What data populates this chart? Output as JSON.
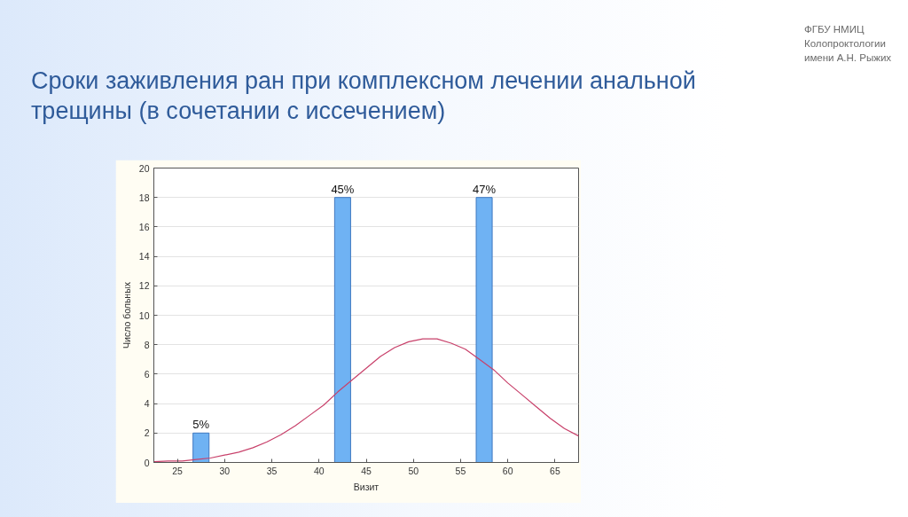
{
  "chart_data": {
    "type": "bar",
    "title": "Сроки заживления ран при комплексном лечении анальной трещины (в сочетании с иссечением)",
    "xlabel": "Визит",
    "ylabel": "Число больных",
    "annotations": [
      "ФГБУ НМИЦ\nКолопроктологии\nимени А.Н. Рыжих",
      {
        "text": "5%",
        "x": 27.5,
        "y": 2
      },
      {
        "text": "45%",
        "x": 42.5,
        "y": 18
      },
      {
        "text": "47%",
        "x": 57.5,
        "y": 18
      }
    ],
    "xlim": [
      22.5,
      67.5
    ],
    "xticks": [
      25,
      30,
      35,
      40,
      45,
      50,
      55,
      60,
      65
    ],
    "ylim": [
      0,
      20
    ],
    "yticks": [
      0,
      2,
      4,
      6,
      8,
      10,
      12,
      14,
      16,
      18,
      20
    ],
    "grid": "y",
    "series": [
      {
        "x": [
          27.5,
          42.5,
          57.5
        ],
        "values": [
          2,
          18,
          18
        ],
        "color": "#6fb2f3"
      },
      {
        "type": "line",
        "color": "#c8406a",
        "x": [
          22.5,
          24,
          25.5,
          27,
          28.5,
          30,
          31.5,
          33,
          34.5,
          36,
          37.5,
          39,
          40.5,
          42,
          43.5,
          45,
          46.5,
          48,
          49.5,
          51,
          52.5,
          54,
          55.5,
          57,
          58.5,
          60,
          61.5,
          63,
          64.5,
          66,
          67.5
        ],
        "values": [
          0.05,
          0.1,
          0.1,
          0.2,
          0.3,
          0.5,
          0.7,
          1.0,
          1.4,
          1.9,
          2.5,
          3.2,
          3.9,
          4.8,
          5.6,
          6.4,
          7.2,
          7.8,
          8.2,
          8.4,
          8.4,
          8.1,
          7.7,
          7.0,
          6.3,
          5.4,
          4.6,
          3.8,
          3.0,
          2.3,
          1.8
        ]
      }
    ]
  }
}
